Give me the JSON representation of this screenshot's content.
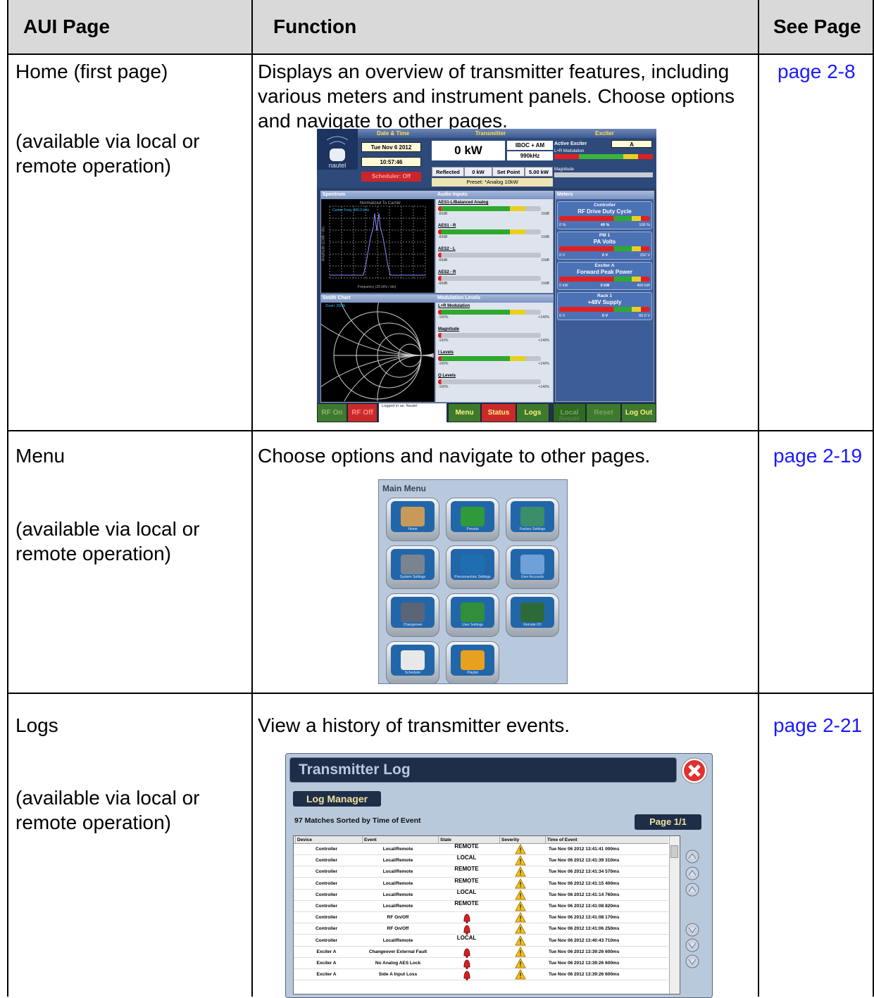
{
  "table": {
    "header": [
      "AUI Page",
      "Function",
      "See Page"
    ],
    "rows": [
      {
        "page": "Home (first page)",
        "availability": "(available via local or remote operation)",
        "function": "Displays an overview of transmitter features, including various meters and instrument panels. Choose options and navigate to other pages.",
        "see": "page 2-8"
      },
      {
        "page": "Menu",
        "availability": "(available via local or remote operation)",
        "function": "Choose options and navigate to other pages.",
        "see": "page 2-19"
      },
      {
        "page": "Logs",
        "availability": "(available via local or remote operation)",
        "function": "View a history of transmitter events.",
        "see": "page 2-21"
      }
    ]
  },
  "home_screen": {
    "logo": "nautel",
    "headers": [
      "Date & Time",
      "Transmitter",
      "Exciter"
    ],
    "date": "Tue Nov 6 2012",
    "time": "10:57:46",
    "scheduler": "Scheduler: Off",
    "power": "0 kW",
    "mode": "IBOC + AM",
    "frequency": "990kHz",
    "reflected_label": "Reflected",
    "reflected": "0 kW",
    "setpoint_label": "Set Point",
    "setpoint": "5.00 kW",
    "preset": "Preset: *Analog 10kW",
    "active_exciter_label": "Active Exciter",
    "active_exciter": "A",
    "exciter_meters": [
      "L+R Modulation",
      "Magnitude"
    ],
    "panels": [
      "Spectrum",
      "Audio Inputs",
      "Meters",
      "Smith Chart",
      "Modulation Levels"
    ],
    "spectrum_title": "Normalized To Carrier",
    "spectrum_center": "Center Freq: 990.0 kHz",
    "spectrum_xlabel": "Frequency (25 kHz / div)",
    "spectrum_ylabel": "Amplitude (10dB / div)",
    "smith_zoom": "Zoom: 200%",
    "audio_inputs": [
      "AES1-L/Balanced Analog",
      "AES1 - R",
      "AES2 - L",
      "AES2 - R"
    ],
    "audio_scale": [
      "-60dB",
      "10dB"
    ],
    "modulation_levels": [
      "L+R Modulation",
      "Magnitude",
      "I Levels",
      "Q Levels"
    ],
    "modulation_scale": [
      "-100%",
      "+140%"
    ],
    "meters": [
      {
        "device": "Controller",
        "name": "RF Drive Duty Cycle",
        "value": "49 %",
        "min": "0 %",
        "max": "100 %"
      },
      {
        "device": "PM 1",
        "name": "PA Volts",
        "value": "0 V",
        "min": "0 V",
        "max": "250 V"
      },
      {
        "device": "Exciter A",
        "name": "Forward Peak Power",
        "value": "0 kW",
        "min": "0 kW",
        "max": "400 kW"
      },
      {
        "device": "Rack 1",
        "name": "+48V Supply",
        "value": "0 V",
        "min": "0 V",
        "max": "60.0 V"
      }
    ],
    "buttons": [
      "RF On",
      "RF Off",
      "Menu",
      "Status",
      "Logs",
      "Local",
      "Reset",
      "Log Out"
    ],
    "remote": "Remote",
    "login": "Logged in as: Nautel"
  },
  "menu_screen": {
    "title": "Main Menu",
    "items": [
      "Home",
      "Presets",
      "Factory Settings",
      "System Settings",
      "Preconnection Settings",
      "User Accounts",
      "Changeover",
      "User Settings",
      "Remote I/O",
      "Scheduler",
      "Playlist"
    ]
  },
  "log_screen": {
    "title": "Transmitter Log",
    "manager": "Log Manager",
    "matches": "97 Matches Sorted by Time of Event",
    "page": "Page 1/1",
    "columns": [
      "Device",
      "Event",
      "State",
      "Severity",
      "Time of Event"
    ],
    "rows": [
      [
        "Controller",
        "Local/Remote",
        "REMOTE",
        "Tue Nov 06 2012 13:41:41 000ms"
      ],
      [
        "Controller",
        "Local/Remote",
        "LOCAL",
        "Tue Nov 06 2012 13:41:39 310ms"
      ],
      [
        "Controller",
        "Local/Remote",
        "REMOTE",
        "Tue Nov 06 2012 13:41:34 570ms"
      ],
      [
        "Controller",
        "Local/Remote",
        "REMOTE",
        "Tue Nov 06 2012 13:41:15 400ms"
      ],
      [
        "Controller",
        "Local/Remote",
        "LOCAL",
        "Tue Nov 06 2012 13:41:14 760ms"
      ],
      [
        "Controller",
        "Local/Remote",
        "REMOTE",
        "Tue Nov 06 2012 13:41:08 820ms"
      ],
      [
        "Controller",
        "RF On/Off",
        null,
        "Tue Nov 06 2012 13:41:08 170ms"
      ],
      [
        "Controller",
        "RF On/Off",
        null,
        "Tue Nov 06 2012 13:41:06 250ms"
      ],
      [
        "Controller",
        "Local/Remote",
        "LOCAL",
        "Tue Nov 06 2012 13:40:43 710ms"
      ],
      [
        "Exciter A",
        "Changeover External Fault",
        null,
        "Tue Nov 06 2012 13:39:26 600ms"
      ],
      [
        "Exciter A",
        "No Analog AES Lock",
        null,
        "Tue Nov 06 2012 13:39:26 600ms"
      ],
      [
        "Exciter A",
        "Side A Input Loss",
        null,
        "Tue Nov 06 2012 13:39:26 600ms"
      ]
    ]
  }
}
